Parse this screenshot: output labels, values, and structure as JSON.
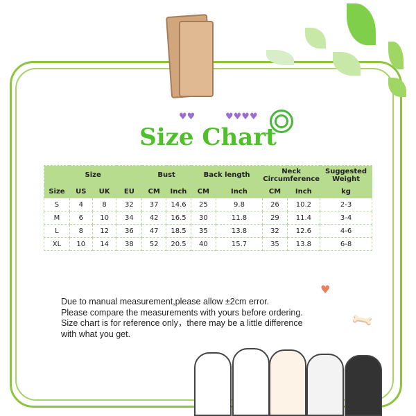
{
  "title": "Size Chart",
  "table": {
    "group_headers": [
      "Size",
      "Bust",
      "Back length",
      "Neck Circumference",
      "Suggested Weight"
    ],
    "sub_headers": [
      "Size",
      "US",
      "UK",
      "EU",
      "CM",
      "Inch",
      "CM",
      "Inch",
      "CM",
      "Inch",
      "kg"
    ],
    "rows": [
      [
        "S",
        "4",
        "8",
        "32",
        "37",
        "14.6",
        "25",
        "9.8",
        "26",
        "10.2",
        "2-3"
      ],
      [
        "M",
        "6",
        "10",
        "34",
        "42",
        "16.5",
        "30",
        "11.8",
        "29",
        "11.4",
        "3-4"
      ],
      [
        "L",
        "8",
        "12",
        "36",
        "47",
        "18.5",
        "35",
        "13.8",
        "32",
        "12.6",
        "4-6"
      ],
      [
        "XL",
        "10",
        "14",
        "38",
        "52",
        "20.5",
        "40",
        "15.7",
        "35",
        "13.8",
        "6-8"
      ]
    ]
  },
  "notes": [
    "Due to manual measurement,please allow ±2cm error.",
    "Please compare the measurements with yours before ordering.",
    "Size chart is for reference only，there may be a little difference",
    "with what you get."
  ],
  "colors": {
    "accent": "#4fbf2a",
    "header_bg": "#b7dc8e",
    "frame": "#8cc43f"
  }
}
